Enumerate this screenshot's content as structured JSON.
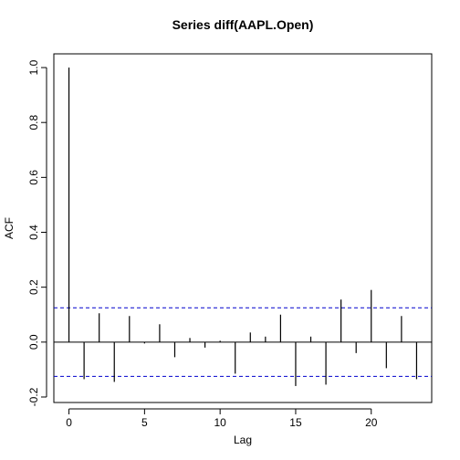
{
  "chart_data": {
    "type": "bar",
    "title": "Series  diff(AAPL.Open)",
    "xlabel": "Lag",
    "ylabel": "ACF",
    "xlim": [
      -1.0,
      24.0
    ],
    "ylim": [
      -0.22,
      1.05
    ],
    "x_ticks": [
      0,
      5,
      10,
      15,
      20
    ],
    "y_ticks": [
      -0.2,
      0.0,
      0.2,
      0.4,
      0.6,
      0.8,
      1.0
    ],
    "lags": [
      0,
      1,
      2,
      3,
      4,
      5,
      6,
      7,
      8,
      9,
      10,
      11,
      12,
      13,
      14,
      15,
      16,
      17,
      18,
      19,
      20,
      21,
      22,
      23
    ],
    "acf": [
      1.0,
      -0.135,
      0.105,
      -0.145,
      0.095,
      -0.005,
      0.065,
      -0.055,
      0.015,
      -0.02,
      0.005,
      -0.115,
      0.035,
      0.02,
      0.1,
      -0.16,
      0.02,
      -0.155,
      0.155,
      -0.04,
      0.19,
      -0.095,
      0.095,
      -0.135
    ],
    "confidence_bound": 0.125,
    "colors": {
      "bars": "#000000",
      "ci": "#0000cd",
      "zero_line": "#000000",
      "box": "#000000"
    }
  }
}
